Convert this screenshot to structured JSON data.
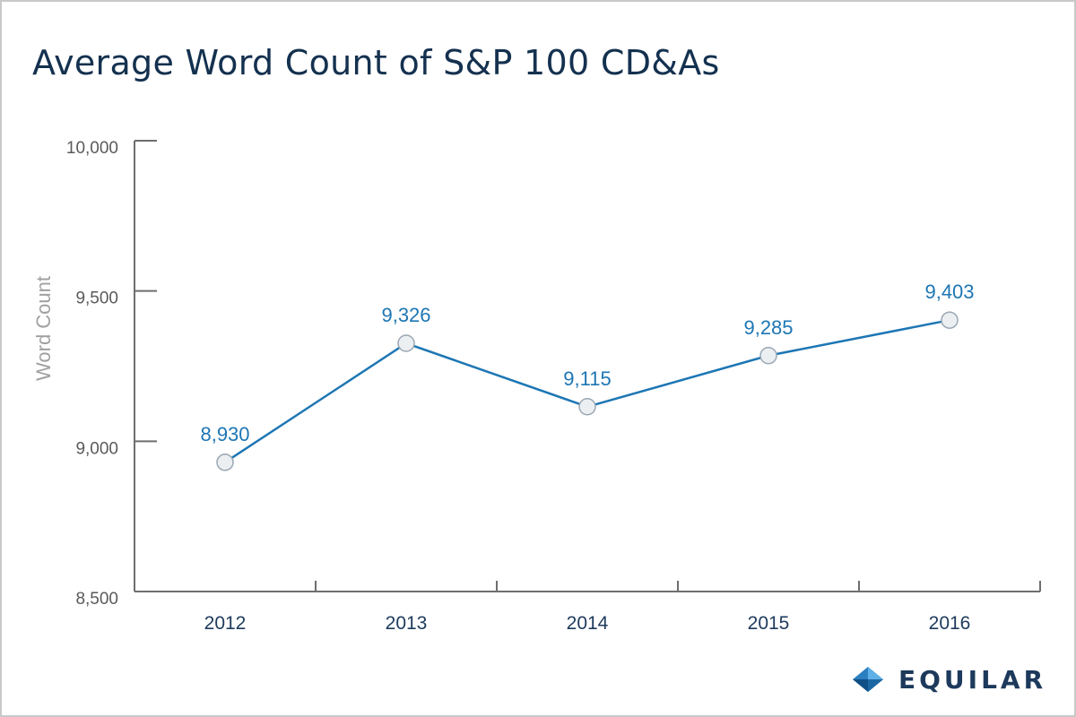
{
  "colors": {
    "series": "#1d76b4",
    "axis": "#6e6e6e",
    "tick_text": "#5a5a5a",
    "x_tick_text": "#1d3a5c",
    "ylabel": "#a0a0a0",
    "title": "#14314f",
    "marker_fill": "#eceff2",
    "marker_stroke": "#9aa7b3"
  },
  "chart_data": {
    "type": "line",
    "title": "Average Word Count of S&P 100 CD&As",
    "xlabel": "",
    "ylabel": "Word Count",
    "categories": [
      "2012",
      "2013",
      "2014",
      "2015",
      "2016"
    ],
    "series": [
      {
        "values": [
          8930,
          9326,
          9115,
          9285,
          9403
        ]
      }
    ],
    "data_labels": [
      "8,930",
      "9,326",
      "9,115",
      "9,285",
      "9,403"
    ],
    "ylim": [
      8500,
      10000
    ],
    "yticks": [
      8500,
      9000,
      9500,
      10000
    ],
    "ytick_labels": [
      "8,500",
      "9,000",
      "9,500",
      "10,000"
    ],
    "grid": false,
    "legend": "none"
  },
  "brand": {
    "name": "EQUILAR",
    "icon": "diamond-logo-icon"
  }
}
